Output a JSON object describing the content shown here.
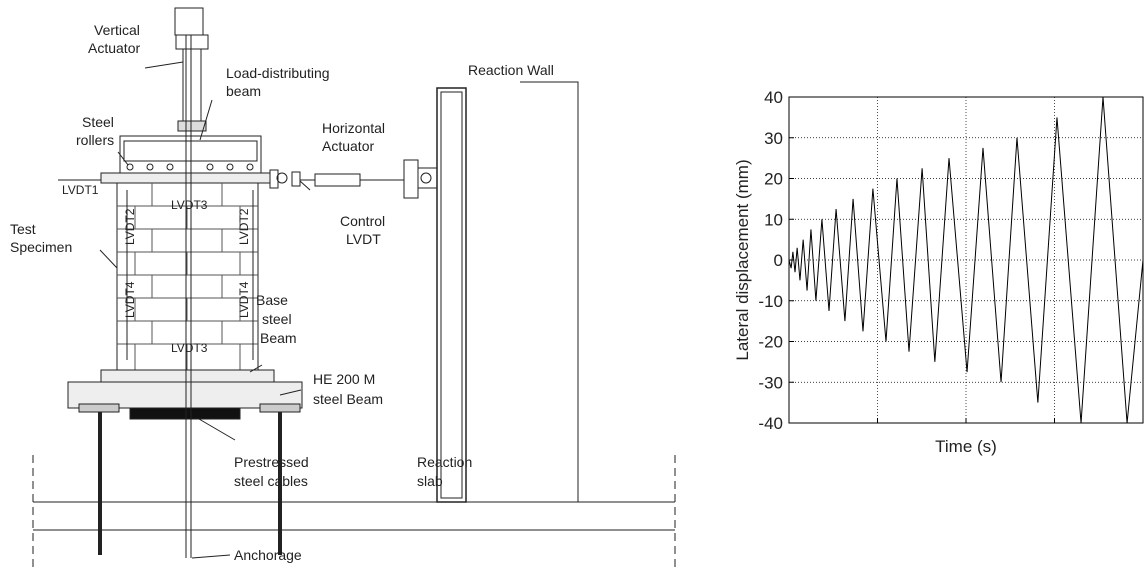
{
  "diagram": {
    "labels": {
      "vertical_actuator": [
        "Vertical",
        "Actuator"
      ],
      "load_beam": [
        "Load-distributing",
        "beam"
      ],
      "steel_rollers": [
        "Steel",
        "rollers"
      ],
      "reaction_wall": "Reaction Wall",
      "horizontal_actuator": [
        "Horizontal",
        "Actuator"
      ],
      "lvdt1": "LVDT1",
      "lvdt3_top": "LVDT3",
      "lvdt2_left": "LVDT2",
      "lvdt2_right": "LVDT2",
      "control_lvdt": [
        "Control",
        "LVDT"
      ],
      "test_specimen": [
        "Test",
        "Specimen"
      ],
      "lvdt4_left": "LVDT4",
      "lvdt4_right": "LVDT4",
      "base_beam": [
        "Base",
        "steel",
        "Beam"
      ],
      "lvdt3_bottom": "LVDT3",
      "he_beam": [
        "HE 200 M",
        "steel Beam"
      ],
      "cables": [
        "Prestressed",
        "steel cables"
      ],
      "reaction_slab": [
        "Reaction",
        "slab"
      ],
      "anchorage": "Anchorage"
    }
  },
  "chart_data": {
    "type": "line",
    "xlabel": "Time (s)",
    "ylabel": "Lateral displacement (mm)",
    "x": [
      0,
      0.6,
      1.1,
      1.7,
      2.3,
      3.1,
      4.0,
      5.1,
      6.2,
      7.6,
      9.3,
      11.3,
      13.3,
      15.8,
      18.1,
      20.9,
      23.7,
      27.4,
      30.5,
      33.9,
      37.6,
      41.2,
      45.2,
      50.3,
      54.8,
      59.9,
      64.4,
      70.3,
      75.7,
      82.5,
      88.7,
      95.5,
      100
    ],
    "series": [
      {
        "color": "#000000",
        "values": [
          0,
          -2,
          2,
          -3,
          3,
          -5,
          5,
          -7.5,
          7.5,
          -10,
          10,
          -12.5,
          12.5,
          -15,
          15,
          -17.5,
          17.5,
          -20,
          20,
          -22.5,
          22.5,
          -25,
          25,
          -27.5,
          27.5,
          -30,
          30,
          -35,
          35,
          -40,
          40,
          -40,
          0
        ]
      }
    ],
    "xlim": [
      0,
      100
    ],
    "xticks": [
      0,
      25,
      50,
      75,
      100
    ],
    "xtick_labels": false,
    "ylim": [
      -40,
      40
    ],
    "yticks": [
      40,
      30,
      20,
      10,
      0,
      -10,
      -20,
      -30,
      -40
    ],
    "grid": true
  }
}
